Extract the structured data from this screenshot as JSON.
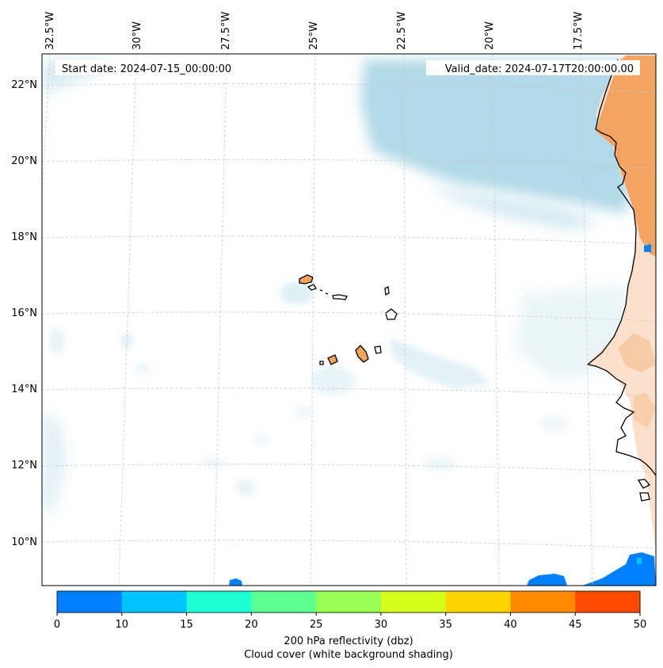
{
  "map": {
    "start_label": "Start date: 2024-07-15_00:00:00",
    "valid_label": "Valid_date: 2024-07-17T20:00:00.00",
    "lon_labels": [
      "32.5°W",
      "30°W",
      "27.5°W",
      "25°W",
      "22.5°W",
      "20°W",
      "17.5°W"
    ],
    "lat_labels": [
      "22°N",
      "20°N",
      "18°N",
      "16°N",
      "14°N",
      "12°N",
      "10°N"
    ],
    "colors": {
      "cloud": "#add8e6",
      "land_warm": "#f4a460",
      "land_light": "#fbe0cc",
      "reflectivity_low": "#0080ff",
      "coast": "#000000",
      "grid": "#c8c8c8"
    }
  },
  "colorbar": {
    "ticks": [
      "0",
      "10",
      "15",
      "20",
      "25",
      "30",
      "35",
      "40",
      "45",
      "50"
    ],
    "colors": [
      "#0080ff",
      "#00c4ff",
      "#1effd6",
      "#5cff90",
      "#98ff54",
      "#d4ff1a",
      "#ffd400",
      "#ff8a00",
      "#ff4a00"
    ],
    "label_line1": "200 hPa reflectivity (dbz)",
    "label_line2": "Cloud cover (white background shading)"
  }
}
